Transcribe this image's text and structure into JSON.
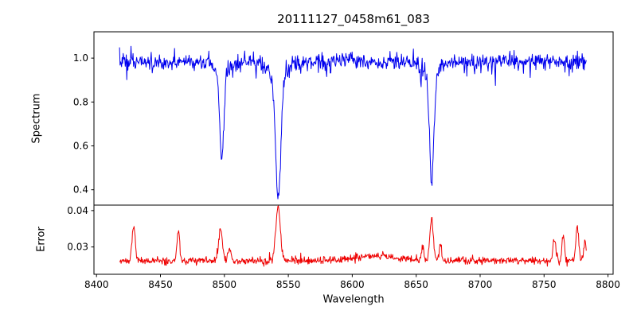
{
  "chart_data": {
    "type": "line",
    "title": "20111127_0458m61_083",
    "xlabel": "Wavelength",
    "grid": false,
    "legend": "none",
    "xlim": [
      8398,
      8804
    ],
    "x_ticks": [
      8400,
      8450,
      8500,
      8550,
      8600,
      8650,
      8700,
      8750,
      8800
    ],
    "x_range": [
      8418,
      8783
    ],
    "n_points": 900,
    "seed": 7,
    "panels": [
      {
        "name": "spectrum",
        "ylabel": "Spectrum",
        "color": "#0000ee",
        "ylim": [
          0.33,
          1.12
        ],
        "y_ticks": [
          0.4,
          0.6,
          0.8,
          1.0
        ],
        "continuum": 0.985,
        "noise_sigma": 0.018,
        "absorption_lines": [
          {
            "center": 8498.0,
            "depth": 0.39,
            "sigma": 1.6,
            "min_value": 0.56
          },
          {
            "center": 8542.1,
            "depth": 0.56,
            "sigma": 2.0,
            "min_value": 0.37
          },
          {
            "center": 8662.1,
            "depth": 0.48,
            "sigma": 1.7,
            "min_value": 0.46
          }
        ]
      },
      {
        "name": "error",
        "ylabel": "Error",
        "color": "#ee0000",
        "ylim": [
          0.0225,
          0.0415
        ],
        "y_ticks": [
          0.03,
          0.04
        ],
        "baseline": 0.0262,
        "noise_sigma": 0.0005,
        "peaks": [
          {
            "center": 8429,
            "height": 0.0095,
            "sigma": 1.2
          },
          {
            "center": 8464,
            "height": 0.0085,
            "sigma": 1.0
          },
          {
            "center": 8497,
            "height": 0.009,
            "sigma": 1.4
          },
          {
            "center": 8504,
            "height": 0.0035,
            "sigma": 1.0
          },
          {
            "center": 8542,
            "height": 0.0145,
            "sigma": 1.8
          },
          {
            "center": 8620,
            "height": 0.0013,
            "sigma": 18
          },
          {
            "center": 8655,
            "height": 0.0035,
            "sigma": 1.0
          },
          {
            "center": 8662,
            "height": 0.011,
            "sigma": 1.4
          },
          {
            "center": 8669,
            "height": 0.004,
            "sigma": 1.0
          },
          {
            "center": 8758,
            "height": 0.006,
            "sigma": 1.0
          },
          {
            "center": 8765,
            "height": 0.007,
            "sigma": 1.0
          },
          {
            "center": 8776,
            "height": 0.0095,
            "sigma": 1.1
          },
          {
            "center": 8782,
            "height": 0.0055,
            "sigma": 0.9
          }
        ]
      }
    ]
  }
}
